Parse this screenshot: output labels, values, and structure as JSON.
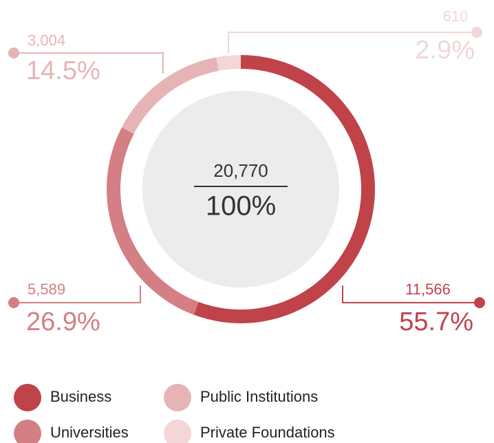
{
  "chart_data": {
    "type": "pie",
    "categories": [
      "Business",
      "Universities",
      "Public Institutions",
      "Private Foundations"
    ],
    "values": [
      11566,
      5589,
      3004,
      610
    ],
    "value_labels": [
      "11,566",
      "5,589",
      "3,004",
      "610"
    ],
    "percents": [
      55.7,
      26.9,
      14.5,
      2.9
    ],
    "percent_labels": [
      "55.7%",
      "26.9%",
      "14.5%",
      "2.9%"
    ],
    "colors": [
      "#c0434a",
      "#d47f83",
      "#e6b4b6",
      "#f3d6d7"
    ],
    "total_label": "20,770",
    "total_percent_label": "100%",
    "legend": "bottom"
  }
}
